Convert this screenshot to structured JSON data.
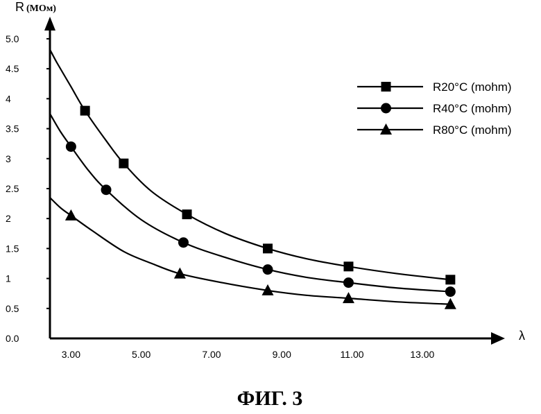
{
  "chart_data": {
    "type": "line",
    "caption": "ФИГ. 3",
    "ylabel": "R",
    "ylabel_unit": "(МОм)",
    "xlabel": "λ",
    "xlim": [
      2.4,
      14.8
    ],
    "ylim": [
      0,
      5.3
    ],
    "xticks": [
      {
        "value": 3.0,
        "label": "3.00"
      },
      {
        "value": 5.0,
        "label": "5.00"
      },
      {
        "value": 7.0,
        "label": "7.00"
      },
      {
        "value": 9.0,
        "label": "9.00"
      },
      {
        "value": 11.0,
        "label": "11.00"
      },
      {
        "value": 13.0,
        "label": "13.00"
      }
    ],
    "yticks": [
      {
        "value": 0.0,
        "label": "0.0"
      },
      {
        "value": 0.5,
        "label": "0.5"
      },
      {
        "value": 1.0,
        "label": "1"
      },
      {
        "value": 1.5,
        "label": "1.5"
      },
      {
        "value": 2.0,
        "label": "2"
      },
      {
        "value": 2.5,
        "label": "2.5"
      },
      {
        "value": 3.0,
        "label": "3"
      },
      {
        "value": 3.5,
        "label": "3.5"
      },
      {
        "value": 4.0,
        "label": "4"
      },
      {
        "value": 4.5,
        "label": "4.5"
      },
      {
        "value": 5.0,
        "label": "5.0"
      }
    ],
    "grid": false,
    "legend_position": "top-right",
    "series": [
      {
        "name": "R20°C (mohm)",
        "marker": "square",
        "points": [
          [
            3.4,
            3.8
          ],
          [
            4.5,
            2.92
          ],
          [
            6.3,
            2.07
          ],
          [
            8.6,
            1.5
          ],
          [
            10.9,
            1.2
          ],
          [
            13.8,
            0.98
          ]
        ],
        "curve": [
          [
            2.4,
            4.82
          ],
          [
            2.6,
            4.6
          ],
          [
            3.0,
            4.2
          ],
          [
            3.4,
            3.8
          ],
          [
            4.0,
            3.3
          ],
          [
            4.5,
            2.92
          ],
          [
            5.3,
            2.45
          ],
          [
            6.3,
            2.07
          ],
          [
            7.4,
            1.75
          ],
          [
            8.6,
            1.5
          ],
          [
            9.7,
            1.33
          ],
          [
            10.9,
            1.2
          ],
          [
            12.3,
            1.08
          ],
          [
            13.8,
            0.98
          ]
        ]
      },
      {
        "name": "R40°C (mohm)",
        "marker": "circle",
        "points": [
          [
            3.0,
            3.2
          ],
          [
            4.0,
            2.48
          ],
          [
            6.2,
            1.6
          ],
          [
            8.6,
            1.15
          ],
          [
            10.9,
            0.93
          ],
          [
            13.8,
            0.78
          ]
        ],
        "curve": [
          [
            2.4,
            3.75
          ],
          [
            2.7,
            3.45
          ],
          [
            3.0,
            3.2
          ],
          [
            3.5,
            2.8
          ],
          [
            4.0,
            2.48
          ],
          [
            5.0,
            1.98
          ],
          [
            6.2,
            1.6
          ],
          [
            7.4,
            1.35
          ],
          [
            8.6,
            1.15
          ],
          [
            9.7,
            1.02
          ],
          [
            10.9,
            0.93
          ],
          [
            12.3,
            0.84
          ],
          [
            13.8,
            0.78
          ]
        ]
      },
      {
        "name": "R80°C (mohm)",
        "marker": "triangle",
        "points": [
          [
            3.0,
            2.05
          ],
          [
            6.1,
            1.08
          ],
          [
            8.6,
            0.8
          ],
          [
            10.9,
            0.67
          ],
          [
            13.8,
            0.57
          ]
        ],
        "curve": [
          [
            2.4,
            2.35
          ],
          [
            2.7,
            2.18
          ],
          [
            3.0,
            2.05
          ],
          [
            3.6,
            1.8
          ],
          [
            4.5,
            1.45
          ],
          [
            5.3,
            1.25
          ],
          [
            6.1,
            1.08
          ],
          [
            7.3,
            0.93
          ],
          [
            8.6,
            0.8
          ],
          [
            9.7,
            0.72
          ],
          [
            10.9,
            0.67
          ],
          [
            12.3,
            0.61
          ],
          [
            13.8,
            0.57
          ]
        ]
      }
    ]
  }
}
